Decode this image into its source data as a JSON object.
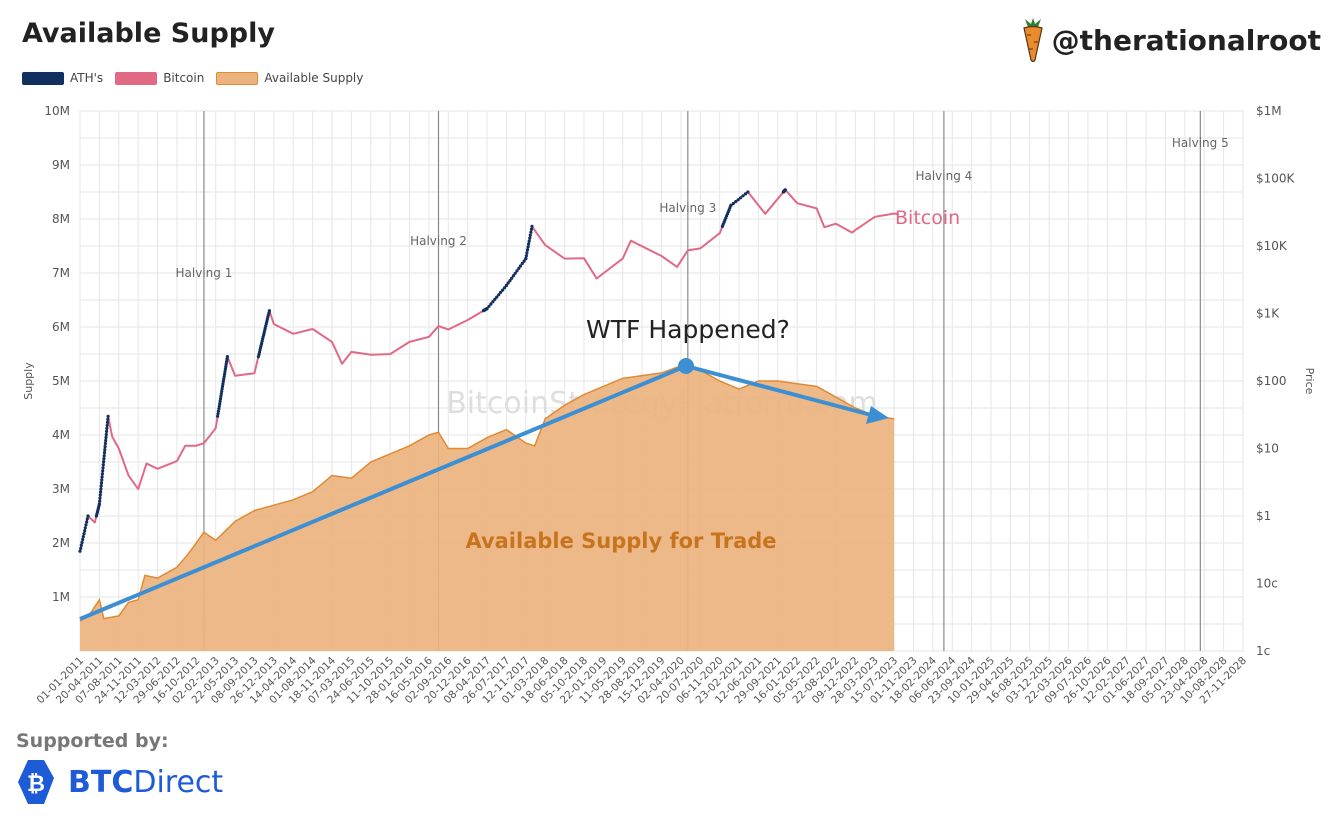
{
  "header": {
    "title": "Available Supply",
    "handle": "@therationalroot"
  },
  "legend": [
    {
      "label": "ATH's",
      "color": "#12305e"
    },
    {
      "label": "Bitcoin",
      "color": "#e06a86"
    },
    {
      "label": "Available Supply",
      "color": "#ecb37e"
    }
  ],
  "footer": {
    "supported_by": "Supported by:",
    "brand_bold": "BTC",
    "brand_rest": "Direct"
  },
  "chart_data": {
    "type": "area",
    "watermark": "BitcoinStrategyPlatform.com",
    "ylabel_left": "Supply",
    "ylabel_right": "Price",
    "y_left_ticks": [
      "10M",
      "9M",
      "8M",
      "7M",
      "6M",
      "5M",
      "4M",
      "3M",
      "2M",
      "1M"
    ],
    "y_right_ticks": [
      "$1M",
      "$100K",
      "$10K",
      "$1K",
      "$100",
      "$10",
      "$1",
      "10c",
      "1c"
    ],
    "x_ticks": [
      "01-01-2011",
      "20-04-2011",
      "07-08-2011",
      "24-11-2011",
      "12-03-2012",
      "29-06-2012",
      "16-10-2012",
      "02-02-2013",
      "22-05-2013",
      "08-09-2013",
      "26-12-2013",
      "14-04-2014",
      "01-08-2014",
      "18-11-2014",
      "07-03-2015",
      "24-06-2015",
      "11-10-2015",
      "28-01-2016",
      "16-05-2016",
      "02-09-2016",
      "20-12-2016",
      "08-04-2017",
      "26-07-2017",
      "12-11-2017",
      "01-03-2018",
      "18-06-2018",
      "05-10-2018",
      "22-01-2019",
      "11-05-2019",
      "28-08-2019",
      "15-12-2019",
      "02-04-2020",
      "20-07-2020",
      "06-11-2020",
      "23-02-2021",
      "12-06-2021",
      "29-09-2021",
      "16-01-2022",
      "05-05-2022",
      "22-08-2022",
      "09-12-2022",
      "28-03-2023",
      "15-07-2023",
      "01-11-2023",
      "18-02-2024",
      "06-06-2024",
      "23-09-2024",
      "10-01-2025",
      "29-04-2025",
      "16-08-2025",
      "03-12-2025",
      "22-03-2026",
      "09-07-2026",
      "26-10-2026",
      "12-02-2027",
      "01-06-2027",
      "18-09-2027",
      "05-01-2028",
      "23-04-2028",
      "10-08-2028",
      "27-11-2028"
    ],
    "halvings": [
      {
        "label": "Halving 1",
        "date": "2012-11-28"
      },
      {
        "label": "Halving 2",
        "date": "2016-07-09"
      },
      {
        "label": "Halving 3",
        "date": "2020-05-11"
      },
      {
        "label": "Halving 4",
        "date": "2024-04-20"
      },
      {
        "label": "Halving 5",
        "date": "2028-04-01"
      }
    ],
    "series": [
      {
        "name": "Available Supply",
        "unit": "coins",
        "points": [
          [
            "2011-01-01",
            0.55
          ],
          [
            "2011-03-01",
            0.7
          ],
          [
            "2011-04-20",
            0.95
          ],
          [
            "2011-05-15",
            0.6
          ],
          [
            "2011-08-07",
            0.65
          ],
          [
            "2011-10-01",
            0.9
          ],
          [
            "2011-11-24",
            0.95
          ],
          [
            "2012-01-01",
            1.4
          ],
          [
            "2012-03-12",
            1.35
          ],
          [
            "2012-06-29",
            1.55
          ],
          [
            "2012-09-01",
            1.8
          ],
          [
            "2012-10-16",
            2.0
          ],
          [
            "2012-11-28",
            2.2
          ],
          [
            "2013-02-02",
            2.05
          ],
          [
            "2013-05-22",
            2.4
          ],
          [
            "2013-09-08",
            2.6
          ],
          [
            "2013-12-26",
            2.7
          ],
          [
            "2014-04-14",
            2.8
          ],
          [
            "2014-08-01",
            2.95
          ],
          [
            "2014-11-18",
            3.25
          ],
          [
            "2015-03-07",
            3.2
          ],
          [
            "2015-06-24",
            3.5
          ],
          [
            "2015-10-11",
            3.65
          ],
          [
            "2016-01-28",
            3.8
          ],
          [
            "2016-05-16",
            4.0
          ],
          [
            "2016-07-09",
            4.05
          ],
          [
            "2016-09-02",
            3.75
          ],
          [
            "2016-12-20",
            3.75
          ],
          [
            "2017-04-08",
            3.95
          ],
          [
            "2017-07-26",
            4.1
          ],
          [
            "2017-11-12",
            3.85
          ],
          [
            "2018-01-01",
            3.8
          ],
          [
            "2018-03-01",
            4.3
          ],
          [
            "2018-06-18",
            4.55
          ],
          [
            "2018-10-05",
            4.75
          ],
          [
            "2019-01-22",
            4.9
          ],
          [
            "2019-05-11",
            5.05
          ],
          [
            "2019-08-28",
            5.1
          ],
          [
            "2019-12-15",
            5.15
          ],
          [
            "2020-04-02",
            5.28
          ],
          [
            "2020-05-11",
            5.3
          ],
          [
            "2020-07-20",
            5.2
          ],
          [
            "2020-11-06",
            5.0
          ],
          [
            "2021-02-23",
            4.85
          ],
          [
            "2021-06-12",
            5.0
          ],
          [
            "2021-09-29",
            5.0
          ],
          [
            "2022-01-16",
            4.95
          ],
          [
            "2022-05-05",
            4.9
          ],
          [
            "2022-08-22",
            4.7
          ],
          [
            "2022-12-09",
            4.5
          ],
          [
            "2023-03-28",
            4.35
          ],
          [
            "2023-07-15",
            4.3
          ]
        ]
      },
      {
        "name": "Bitcoin",
        "unit": "USD",
        "points": [
          [
            "2011-01-01",
            0.3
          ],
          [
            "2011-02-15",
            1.0
          ],
          [
            "2011-03-25",
            0.8
          ],
          [
            "2011-04-20",
            1.5
          ],
          [
            "2011-06-08",
            30
          ],
          [
            "2011-07-01",
            15
          ],
          [
            "2011-08-07",
            10
          ],
          [
            "2011-10-01",
            4
          ],
          [
            "2011-11-24",
            2.5
          ],
          [
            "2012-01-10",
            6
          ],
          [
            "2012-03-12",
            5
          ],
          [
            "2012-06-29",
            6.5
          ],
          [
            "2012-08-15",
            11
          ],
          [
            "2012-10-16",
            11
          ],
          [
            "2012-11-28",
            12
          ],
          [
            "2013-02-02",
            20
          ],
          [
            "2013-04-09",
            230
          ],
          [
            "2013-05-22",
            120
          ],
          [
            "2013-09-08",
            130
          ],
          [
            "2013-12-01",
            1100
          ],
          [
            "2013-12-26",
            700
          ],
          [
            "2014-04-14",
            500
          ],
          [
            "2014-08-01",
            590
          ],
          [
            "2014-11-18",
            380
          ],
          [
            "2015-01-14",
            180
          ],
          [
            "2015-03-07",
            270
          ],
          [
            "2015-06-24",
            245
          ],
          [
            "2015-10-11",
            250
          ],
          [
            "2016-01-28",
            380
          ],
          [
            "2016-05-16",
            450
          ],
          [
            "2016-07-09",
            650
          ],
          [
            "2016-09-02",
            580
          ],
          [
            "2016-12-20",
            800
          ],
          [
            "2017-04-08",
            1180
          ],
          [
            "2017-07-26",
            2600
          ],
          [
            "2017-11-12",
            6500
          ],
          [
            "2017-12-17",
            19500
          ],
          [
            "2018-03-01",
            10300
          ],
          [
            "2018-06-18",
            6500
          ],
          [
            "2018-10-05",
            6600
          ],
          [
            "2018-12-15",
            3300
          ],
          [
            "2019-05-11",
            6500
          ],
          [
            "2019-06-26",
            12000
          ],
          [
            "2019-12-15",
            7100
          ],
          [
            "2020-03-12",
            4900
          ],
          [
            "2020-05-11",
            8600
          ],
          [
            "2020-07-20",
            9200
          ],
          [
            "2020-11-06",
            15500
          ],
          [
            "2021-01-08",
            40000
          ],
          [
            "2021-04-14",
            63000
          ],
          [
            "2021-07-20",
            30000
          ],
          [
            "2021-11-10",
            68000
          ],
          [
            "2022-01-16",
            43000
          ],
          [
            "2022-05-05",
            36000
          ],
          [
            "2022-06-18",
            19000
          ],
          [
            "2022-08-22",
            21400
          ],
          [
            "2022-11-21",
            15800
          ],
          [
            "2022-12-09",
            17200
          ],
          [
            "2023-03-28",
            27000
          ],
          [
            "2023-07-15",
            30300
          ],
          [
            "2023-08-10",
            29400
          ]
        ]
      }
    ],
    "annotations": [
      {
        "text": "WTF Happened?"
      },
      {
        "text": "Available Supply for Trade"
      },
      {
        "text": "Bitcoin"
      }
    ],
    "ylim_left": [
      0,
      10000000
    ],
    "ylim_right": [
      "1c",
      "$1M"
    ],
    "y_right_scale": "log",
    "grid": true
  }
}
